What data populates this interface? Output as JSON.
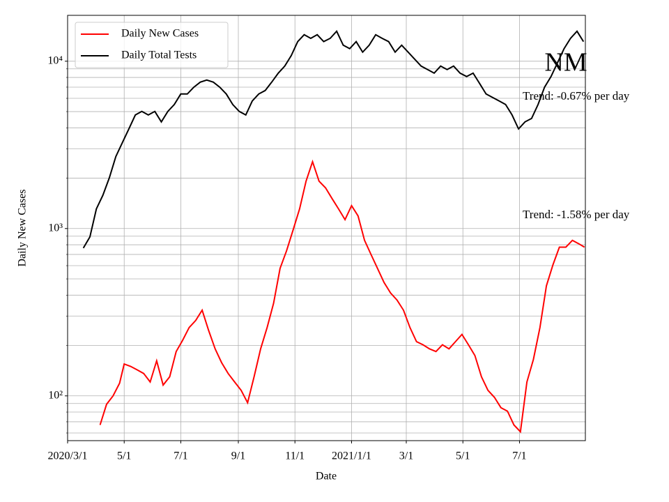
{
  "chart_data": {
    "type": "line",
    "ylabel": "Daily New Cases",
    "xlabel": "Date",
    "annotations": [
      "NM",
      "Trend: -0.67% per day",
      "Trend: -1.58% per day"
    ],
    "yscale": "log",
    "grid": true,
    "legend": "upper left",
    "xlim": [
      "2020-03-01",
      "2021-09-10"
    ],
    "xticks": [
      {
        "value": "2020-03-01",
        "label": "2020/3/1"
      },
      {
        "value": "2020-05-01",
        "label": "5/1"
      },
      {
        "value": "2020-07-01",
        "label": "7/1"
      },
      {
        "value": "2020-09-01",
        "label": "9/1"
      },
      {
        "value": "2020-11-01",
        "label": "11/1"
      },
      {
        "value": "2021-01-01",
        "label": "2021/1/1"
      },
      {
        "value": "2021-03-01",
        "label": "3/1"
      },
      {
        "value": "2021-05-01",
        "label": "5/1"
      },
      {
        "value": "2021-07-01",
        "label": "7/1"
      }
    ],
    "ylim": [
      54,
      18800
    ],
    "yticks": [
      {
        "value": 100,
        "label": "10²"
      },
      {
        "value": 1000,
        "label": "10³"
      },
      {
        "value": 10000,
        "label": "10⁴"
      }
    ],
    "minor_yticks": [
      60,
      70,
      80,
      90,
      200,
      300,
      400,
      500,
      600,
      700,
      800,
      900,
      2000,
      3000,
      4000,
      5000,
      6000,
      7000,
      8000,
      9000
    ],
    "series": [
      {
        "name": "Daily New Cases",
        "color": "#ff0000",
        "x": [
          "2020-04-05",
          "2020-04-12",
          "2020-04-19",
          "2020-04-26",
          "2020-05-01",
          "2020-05-08",
          "2020-05-15",
          "2020-05-22",
          "2020-05-29",
          "2020-06-05",
          "2020-06-12",
          "2020-06-19",
          "2020-06-26",
          "2020-07-03",
          "2020-07-10",
          "2020-07-17",
          "2020-07-24",
          "2020-07-31",
          "2020-08-07",
          "2020-08-14",
          "2020-08-21",
          "2020-08-28",
          "2020-09-04",
          "2020-09-11",
          "2020-09-18",
          "2020-09-25",
          "2020-10-02",
          "2020-10-09",
          "2020-10-16",
          "2020-10-23",
          "2020-10-30",
          "2020-11-06",
          "2020-11-13",
          "2020-11-20",
          "2020-11-27",
          "2020-12-04",
          "2020-12-11",
          "2020-12-18",
          "2020-12-25",
          "2021-01-01",
          "2021-01-08",
          "2021-01-15",
          "2021-01-22",
          "2021-01-29",
          "2021-02-05",
          "2021-02-12",
          "2021-02-19",
          "2021-02-26",
          "2021-03-05",
          "2021-03-12",
          "2021-03-19",
          "2021-03-26",
          "2021-04-02",
          "2021-04-09",
          "2021-04-16",
          "2021-04-23",
          "2021-04-30",
          "2021-05-07",
          "2021-05-14",
          "2021-05-21",
          "2021-05-28",
          "2021-06-04",
          "2021-06-11",
          "2021-06-18",
          "2021-06-25",
          "2021-07-02",
          "2021-07-09",
          "2021-07-16",
          "2021-07-23",
          "2021-07-30",
          "2021-08-06",
          "2021-08-13",
          "2021-08-20",
          "2021-08-27",
          "2021-09-03",
          "2021-09-09"
        ],
        "values": [
          67,
          89,
          100,
          119,
          155,
          150,
          143,
          136,
          121,
          162,
          116,
          130,
          184,
          215,
          256,
          282,
          325,
          246,
          191,
          158,
          136,
          121,
          108,
          91,
          130,
          191,
          256,
          358,
          578,
          736,
          981,
          1310,
          1920,
          2510,
          1920,
          1750,
          1510,
          1310,
          1130,
          1370,
          1190,
          850,
          700,
          578,
          476,
          412,
          374,
          325,
          256,
          211,
          202,
          191,
          184,
          202,
          191,
          211,
          233,
          202,
          174,
          130,
          108,
          98,
          85,
          81,
          67,
          61,
          121,
          165,
          256,
          455,
          606,
          774,
          774,
          850,
          810,
          774
        ]
      },
      {
        "name": "Daily Total Tests",
        "color": "#000000",
        "x": [
          "2020-03-18",
          "2020-03-25",
          "2020-04-01",
          "2020-04-08",
          "2020-04-15",
          "2020-04-22",
          "2020-04-29",
          "2020-05-06",
          "2020-05-13",
          "2020-05-20",
          "2020-05-27",
          "2020-06-03",
          "2020-06-10",
          "2020-06-17",
          "2020-06-24",
          "2020-07-01",
          "2020-07-08",
          "2020-07-15",
          "2020-07-22",
          "2020-07-29",
          "2020-08-05",
          "2020-08-12",
          "2020-08-19",
          "2020-08-26",
          "2020-09-02",
          "2020-09-09",
          "2020-09-16",
          "2020-09-23",
          "2020-09-30",
          "2020-10-07",
          "2020-10-14",
          "2020-10-21",
          "2020-10-28",
          "2020-11-04",
          "2020-11-11",
          "2020-11-18",
          "2020-11-25",
          "2020-12-02",
          "2020-12-09",
          "2020-12-16",
          "2020-12-23",
          "2020-12-30",
          "2021-01-06",
          "2021-01-13",
          "2021-01-20",
          "2021-01-27",
          "2021-02-03",
          "2021-02-10",
          "2021-02-17",
          "2021-02-24",
          "2021-03-03",
          "2021-03-10",
          "2021-03-17",
          "2021-03-24",
          "2021-03-31",
          "2021-04-07",
          "2021-04-14",
          "2021-04-21",
          "2021-04-28",
          "2021-05-05",
          "2021-05-12",
          "2021-05-19",
          "2021-05-26",
          "2021-06-02",
          "2021-06-09",
          "2021-06-16",
          "2021-06-23",
          "2021-06-30",
          "2021-07-07",
          "2021-07-14",
          "2021-07-21",
          "2021-07-28",
          "2021-08-04",
          "2021-08-11",
          "2021-08-18",
          "2021-08-25",
          "2021-09-01",
          "2021-09-08"
        ],
        "values": [
          764,
          891,
          1310,
          1580,
          2010,
          2690,
          3260,
          3940,
          4770,
          5010,
          4770,
          5010,
          4340,
          5010,
          5510,
          6370,
          6370,
          6990,
          7500,
          7720,
          7500,
          6990,
          6370,
          5510,
          5010,
          4770,
          5790,
          6370,
          6680,
          7500,
          8490,
          9350,
          10800,
          13100,
          14400,
          13700,
          14400,
          13100,
          13700,
          15100,
          12470,
          11890,
          13100,
          11330,
          12470,
          14400,
          13700,
          13100,
          11330,
          12470,
          11330,
          10290,
          9350,
          8910,
          8490,
          9350,
          8910,
          9350,
          8490,
          8100,
          8490,
          7360,
          6370,
          6070,
          5790,
          5510,
          4770,
          3940,
          4340,
          4550,
          5510,
          6990,
          8100,
          9810,
          11890,
          13700,
          15100,
          13100
        ]
      }
    ]
  }
}
